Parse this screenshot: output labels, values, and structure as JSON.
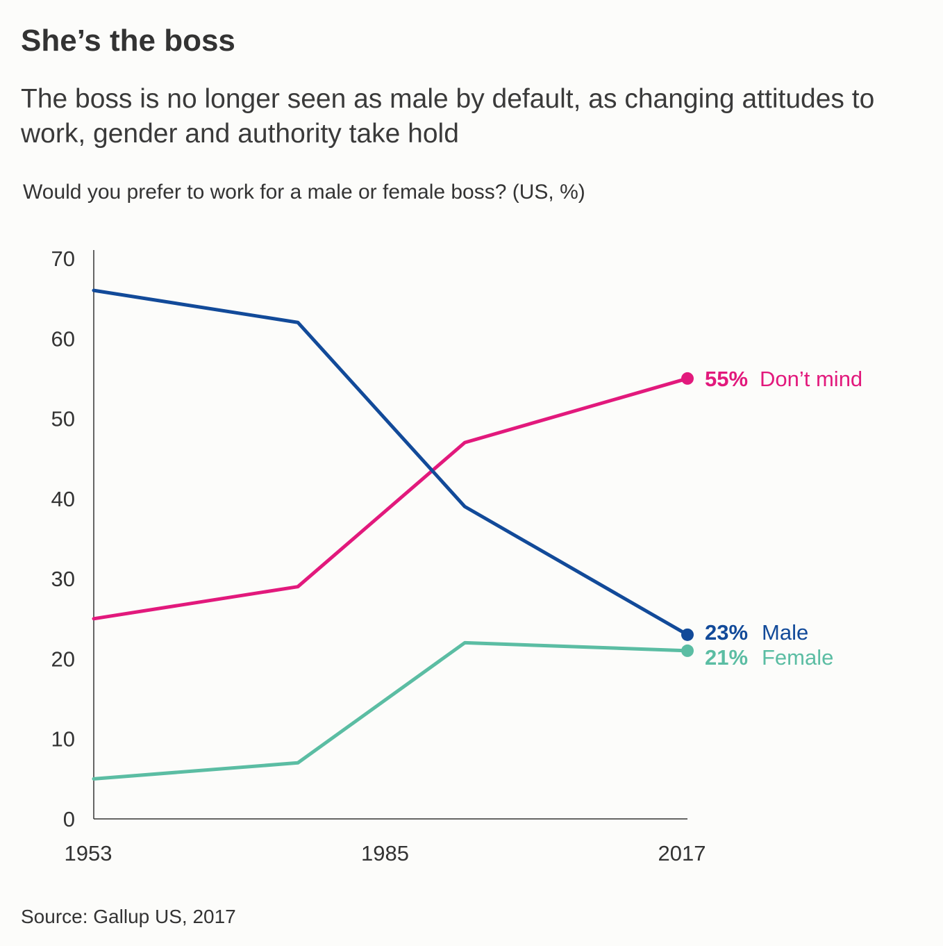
{
  "header": {
    "title": "She’s the boss",
    "subtitle": "The boss is no longer seen as male by default, as changing attitudes to work, gender and authority take hold",
    "question": "Would you prefer to work for a male or female boss? (US, %)"
  },
  "footer": {
    "source": "Source: Gallup US, 2017"
  },
  "chart_data": {
    "type": "line",
    "x": [
      1953,
      1975,
      1993,
      2017
    ],
    "xlim": [
      1953,
      2017
    ],
    "x_ticks": [
      "1953",
      "1985",
      "2017"
    ],
    "ylim": [
      0,
      70
    ],
    "y_ticks": [
      "0",
      "10",
      "20",
      "30",
      "40",
      "50",
      "60",
      "70"
    ],
    "grid": false,
    "series": [
      {
        "name": "Don’t mind",
        "values": [
          25,
          29,
          47,
          55
        ],
        "color": "#e2197c",
        "end_label_value": "55%",
        "end_label_name": "Don’t mind"
      },
      {
        "name": "Male",
        "values": [
          66,
          62,
          39,
          23
        ],
        "color": "#124a99",
        "end_label_value": "23%",
        "end_label_name": "Male"
      },
      {
        "name": "Female",
        "values": [
          5,
          7,
          22,
          21
        ],
        "color": "#5bbda3",
        "end_label_value": "21%",
        "end_label_name": "Female"
      }
    ]
  }
}
